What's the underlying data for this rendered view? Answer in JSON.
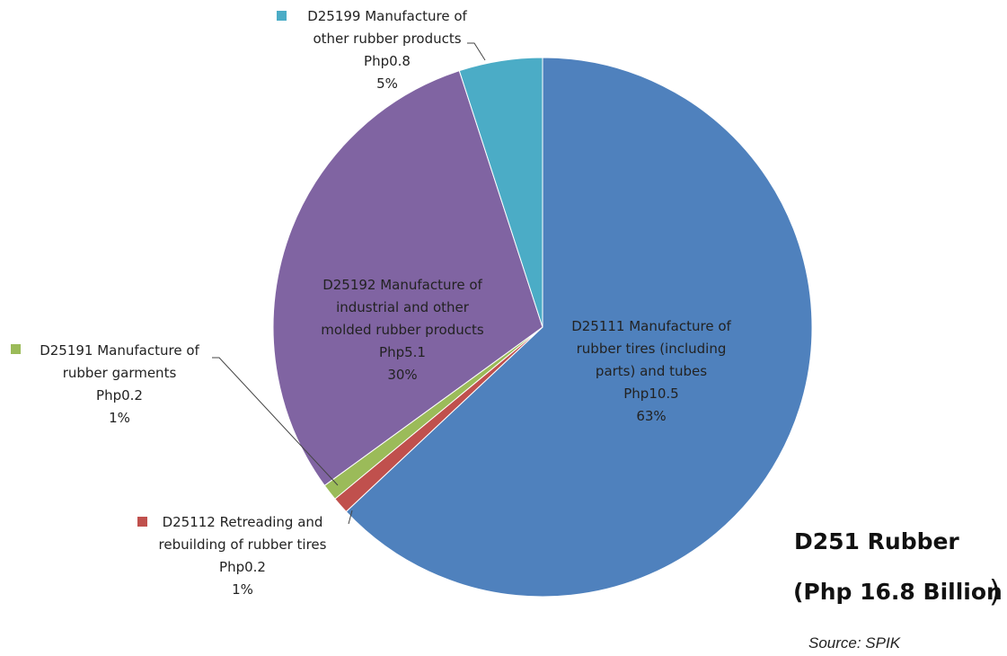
{
  "chart_data": {
    "type": "pie",
    "title": "D251 Rubber",
    "subtitle": "(Php 16.8 Billion",
    "closing_paren": ")",
    "source": "Source: SPIK",
    "slices": [
      {
        "code": "D25111",
        "label_lines": [
          "D25111 Manufacture of",
          "rubber tires (including",
          "parts) and tubes"
        ],
        "value_label": "Php10.5",
        "percent_label": "63%",
        "value": 10.5,
        "percent": 63,
        "color": "#4F81BD"
      },
      {
        "code": "D25112",
        "label_lines": [
          "D25112 Retreading and",
          "rebuilding of rubber tires"
        ],
        "value_label": "Php0.2",
        "percent_label": "1%",
        "value": 0.2,
        "percent": 1,
        "color": "#C0504D"
      },
      {
        "code": "D25191",
        "label_lines": [
          "D25191 Manufacture of",
          "rubber garments"
        ],
        "value_label": "Php0.2",
        "percent_label": "1%",
        "value": 0.2,
        "percent": 1,
        "color": "#9BBB59"
      },
      {
        "code": "D25192",
        "label_lines": [
          "D25192 Manufacture of",
          "industrial and other",
          "molded rubber products"
        ],
        "value_label": "Php5.1",
        "percent_label": "30%",
        "value": 5.1,
        "percent": 30,
        "color": "#8064A2"
      },
      {
        "code": "D25199",
        "label_lines": [
          "D25199 Manufacture of",
          "other rubber products"
        ],
        "value_label": "Php0.8",
        "percent_label": "5%",
        "value": 0.8,
        "percent": 5,
        "color": "#4BACC6"
      }
    ]
  }
}
